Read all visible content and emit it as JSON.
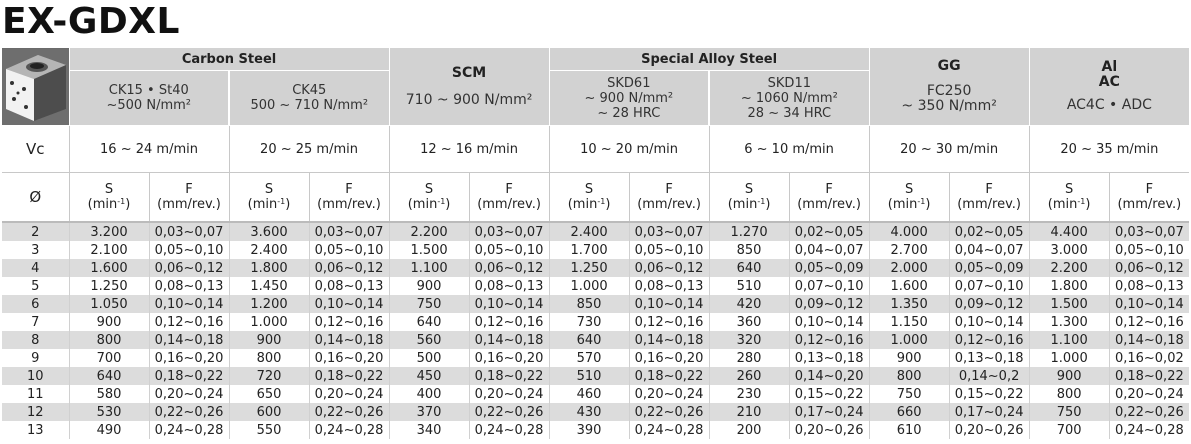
{
  "title": "EX-GDXL",
  "groups": [
    {
      "name": "Carbon Steel",
      "subs": [
        {
          "line1": "CK15 • St40",
          "line2": "~500 N/mm²"
        },
        {
          "line1": "CK45",
          "line2": "500 ~ 710 N/mm²"
        }
      ]
    },
    {
      "name": "SCM",
      "spec": "710 ~ 900 N/mm²"
    },
    {
      "name": "Special Alloy Steel",
      "subs": [
        {
          "line1": "SKD61",
          "line2": "~ 900 N/mm²",
          "line3": "~ 28 HRC"
        },
        {
          "line1": "SKD11",
          "line2": "~ 1060 N/mm²",
          "line3": "28 ~ 34 HRC"
        }
      ]
    },
    {
      "name": "GG",
      "spec_line1": "FC250",
      "spec_line2": "~ 350 N/mm²"
    },
    {
      "name_line1": "Al",
      "name_line2": "AC",
      "spec": "AC4C • ADC"
    }
  ],
  "vc": {
    "label": "Vc",
    "values": [
      "16 ~ 24 m/min",
      "20 ~ 25 m/min",
      "12 ~ 16 m/min",
      "10 ~ 20 m/min",
      "6 ~ 10 m/min",
      "20 ~ 30 m/min",
      "20 ~ 35 m/min"
    ]
  },
  "sf": {
    "diameter_label": "Ø",
    "s_label": "S",
    "s_unit_base": "(min",
    "s_unit_exp": "-1",
    "s_unit_close": ")",
    "f_label": "F",
    "f_unit": "(mm/rev.)"
  },
  "rows": [
    {
      "d": "2",
      "v": [
        "3.200",
        "0,03~0,07",
        "3.600",
        "0,03~0,07",
        "2.200",
        "0,03~0,07",
        "2.400",
        "0,03~0,07",
        "1.270",
        "0,02~0,05",
        "4.000",
        "0,02~0,05",
        "4.400",
        "0,03~0,07"
      ]
    },
    {
      "d": "3",
      "v": [
        "2.100",
        "0,05~0,10",
        "2.400",
        "0,05~0,10",
        "1.500",
        "0,05~0,10",
        "1.700",
        "0,05~0,10",
        "850",
        "0,04~0,07",
        "2.700",
        "0,04~0,07",
        "3.000",
        "0,05~0,10"
      ]
    },
    {
      "d": "4",
      "v": [
        "1.600",
        "0,06~0,12",
        "1.800",
        "0,06~0,12",
        "1.100",
        "0,06~0,12",
        "1.250",
        "0,06~0,12",
        "640",
        "0,05~0,09",
        "2.000",
        "0,05~0,09",
        "2.200",
        "0,06~0,12"
      ]
    },
    {
      "d": "5",
      "v": [
        "1.250",
        "0,08~0,13",
        "1.450",
        "0,08~0,13",
        "900",
        "0,08~0,13",
        "1.000",
        "0,08~0,13",
        "510",
        "0,07~0,10",
        "1.600",
        "0,07~0,10",
        "1.800",
        "0,08~0,13"
      ]
    },
    {
      "d": "6",
      "v": [
        "1.050",
        "0,10~0,14",
        "1.200",
        "0,10~0,14",
        "750",
        "0,10~0,14",
        "850",
        "0,10~0,14",
        "420",
        "0,09~0,12",
        "1.350",
        "0,09~0,12",
        "1.500",
        "0,10~0,14"
      ]
    },
    {
      "d": "7",
      "v": [
        "900",
        "0,12~0,16",
        "1.000",
        "0,12~0,16",
        "640",
        "0,12~0,16",
        "730",
        "0,12~0,16",
        "360",
        "0,10~0,14",
        "1.150",
        "0,10~0,14",
        "1.300",
        "0,12~0,16"
      ]
    },
    {
      "d": "8",
      "v": [
        "800",
        "0,14~0,18",
        "900",
        "0,14~0,18",
        "560",
        "0,14~0,18",
        "640",
        "0,14~0,18",
        "320",
        "0,12~0,16",
        "1.000",
        "0,12~0,16",
        "1.100",
        "0,14~0,18"
      ]
    },
    {
      "d": "9",
      "v": [
        "700",
        "0,16~0,20",
        "800",
        "0,16~0,20",
        "500",
        "0,16~0,20",
        "570",
        "0,16~0,20",
        "280",
        "0,13~0,18",
        "900",
        "0,13~0,18",
        "1.000",
        "0,16~0,02"
      ]
    },
    {
      "d": "10",
      "v": [
        "640",
        "0,18~0,22",
        "720",
        "0,18~0,22",
        "450",
        "0,18~0,22",
        "510",
        "0,18~0,22",
        "260",
        "0,14~0,20",
        "800",
        "0,14~0,2",
        "900",
        "0,18~0,22"
      ]
    },
    {
      "d": "11",
      "v": [
        "580",
        "0,20~0,24",
        "650",
        "0,20~0,24",
        "400",
        "0,20~0,24",
        "460",
        "0,20~0,24",
        "230",
        "0,15~0,22",
        "750",
        "0,15~0,22",
        "800",
        "0,20~0,24"
      ]
    },
    {
      "d": "12",
      "v": [
        "530",
        "0,22~0,26",
        "600",
        "0,22~0,26",
        "370",
        "0,22~0,26",
        "430",
        "0,22~0,26",
        "210",
        "0,17~0,24",
        "660",
        "0,17~0,24",
        "750",
        "0,22~0,26"
      ]
    },
    {
      "d": "13",
      "v": [
        "490",
        "0,24~0,28",
        "550",
        "0,24~0,28",
        "340",
        "0,24~0,28",
        "390",
        "0,24~0,28",
        "200",
        "0,20~0,26",
        "610",
        "0,20~0,26",
        "700",
        "0,24~0,28"
      ]
    }
  ]
}
